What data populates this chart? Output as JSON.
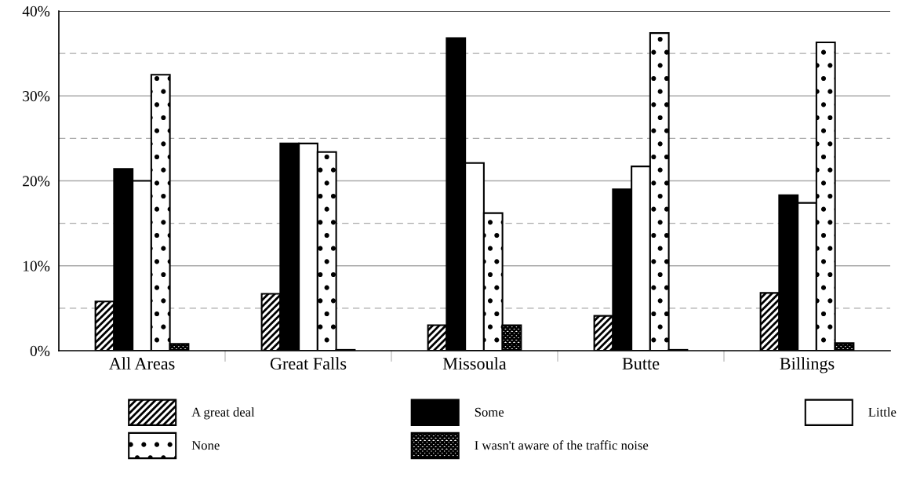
{
  "chart_data": {
    "type": "bar",
    "categories": [
      "All Areas",
      "Great Falls",
      "Missoula",
      "Butte",
      "Billings"
    ],
    "series": [
      {
        "name": "A great deal",
        "color": "#000000",
        "values": [
          5.8,
          6.7,
          3.0,
          4.1,
          6.8
        ]
      },
      {
        "name": "Some",
        "color": "#000000",
        "values": [
          21.4,
          24.4,
          36.8,
          19.0,
          18.3
        ]
      },
      {
        "name": "Little",
        "color": "#ffffff",
        "values": [
          20.0,
          24.4,
          22.1,
          21.7,
          17.4
        ]
      },
      {
        "name": "None",
        "color": "#000000",
        "values": [
          32.5,
          23.4,
          16.2,
          37.4,
          36.3
        ]
      },
      {
        "name": "I wasn't aware of the traffic noise",
        "color": "#000000",
        "values": [
          0.8,
          0.1,
          3.0,
          0.1,
          0.9
        ]
      }
    ],
    "ylim": [
      0,
      40
    ],
    "yticks": [
      {
        "value": 0,
        "label": "0%"
      },
      {
        "value": 5,
        "label": null
      },
      {
        "value": 10,
        "label": "10%"
      },
      {
        "value": 15,
        "label": null
      },
      {
        "value": 20,
        "label": "20%"
      },
      {
        "value": 25,
        "label": null
      },
      {
        "value": 30,
        "label": "30%"
      },
      {
        "value": 35,
        "label": null
      },
      {
        "value": 40,
        "label": "40%"
      }
    ],
    "grid": "y",
    "legend": "bottom"
  }
}
